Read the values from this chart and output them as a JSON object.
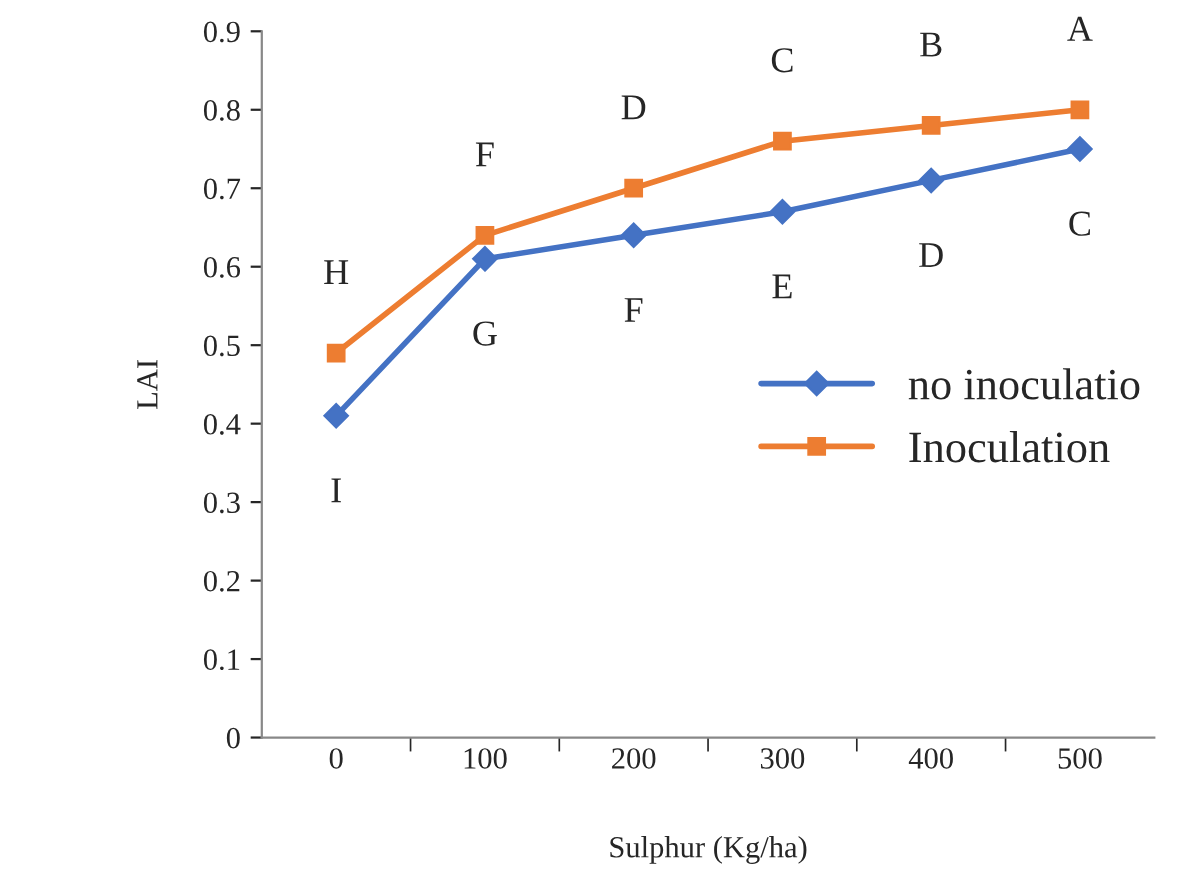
{
  "chart_data": {
    "type": "line",
    "xlabel": "Sulphur (Kg/ha)",
    "ylabel": "LAI",
    "categories": [
      "0",
      "100",
      "200",
      "300",
      "400",
      "500"
    ],
    "series": [
      {
        "name": "no inoculatio",
        "color": "#4472c4",
        "values": [
          0.41,
          0.61,
          0.64,
          0.67,
          0.71,
          0.75
        ],
        "marker": "diamond"
      },
      {
        "name": "Inoculation",
        "color": "#ed7d31",
        "values": [
          0.49,
          0.64,
          0.7,
          0.76,
          0.78,
          0.8
        ],
        "marker": "square"
      }
    ],
    "ylim": [
      0,
      0.9
    ],
    "yticks": [
      {
        "value": 0,
        "label": "0"
      },
      0.1,
      0.2,
      0.3,
      0.4,
      0.5,
      0.6,
      0.7,
      0.8,
      0.9
    ],
    "grid": false,
    "legend": "right",
    "line_style": "solid",
    "annotations": [
      "H",
      "F",
      "D",
      "C",
      "B",
      "A",
      "I",
      "G",
      "F",
      "E",
      "D",
      "C"
    ]
  }
}
